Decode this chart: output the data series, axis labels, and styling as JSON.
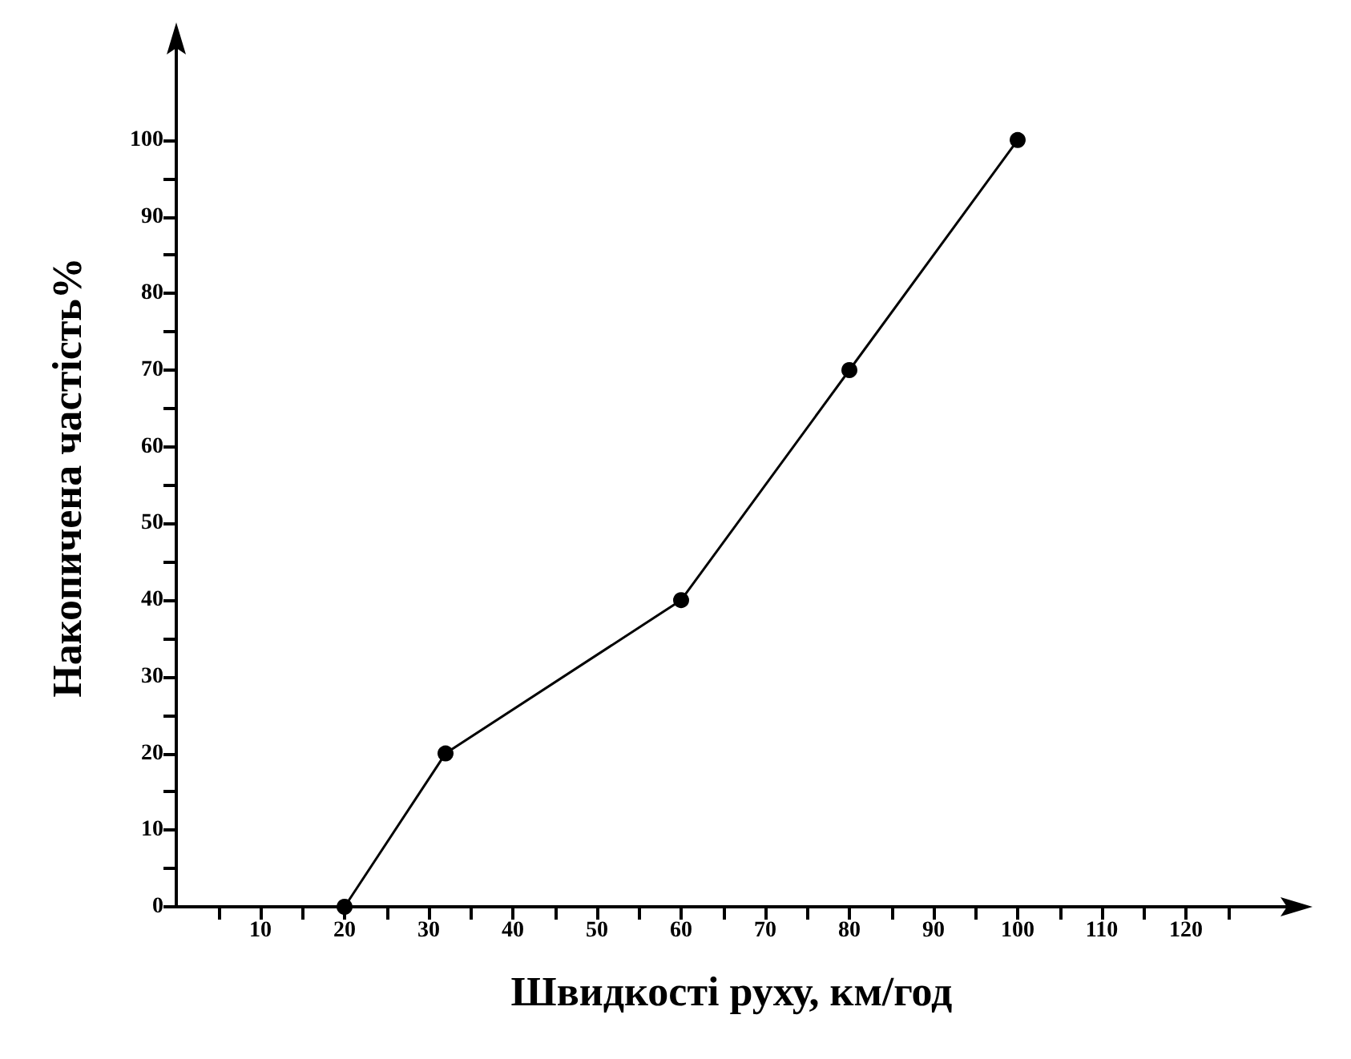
{
  "chart_data": {
    "type": "line",
    "xlabel": "Швидкості руху, км/год",
    "ylabel": "Накопичена частість%",
    "x": [
      20,
      32,
      60,
      80,
      100
    ],
    "series": [
      {
        "color": "#000000",
        "values": [
          0,
          20,
          40,
          70,
          100
        ]
      }
    ],
    "xlim": [
      0,
      132
    ],
    "ylim": [
      0,
      112
    ],
    "xticks": [
      {
        "value": 5,
        "label": null
      },
      10,
      {
        "value": 15,
        "label": null
      },
      20,
      {
        "value": 25,
        "label": null
      },
      30,
      {
        "value": 35,
        "label": null
      },
      40,
      {
        "value": 45,
        "label": null
      },
      50,
      {
        "value": 55,
        "label": null
      },
      60,
      {
        "value": 65,
        "label": null
      },
      70,
      {
        "value": 75,
        "label": null
      },
      80,
      {
        "value": 85,
        "label": null
      },
      90,
      {
        "value": 95,
        "label": null
      },
      100,
      {
        "value": 105,
        "label": null
      },
      110,
      {
        "value": 115,
        "label": null
      },
      120,
      {
        "value": 125,
        "label": null
      }
    ],
    "yticks": [
      0,
      {
        "value": 5,
        "label": null
      },
      10,
      {
        "value": 15,
        "label": null
      },
      20,
      {
        "value": 25,
        "label": null
      },
      30,
      {
        "value": 35,
        "label": null
      },
      40,
      {
        "value": 45,
        "label": null
      },
      50,
      {
        "value": 55,
        "label": null
      },
      60,
      {
        "value": 65,
        "label": null
      },
      70,
      {
        "value": 75,
        "label": null
      },
      80,
      {
        "value": 85,
        "label": null
      },
      90,
      {
        "value": 95,
        "label": null
      },
      100
    ],
    "grid": false,
    "marker": "circle",
    "line_style": "solid"
  }
}
